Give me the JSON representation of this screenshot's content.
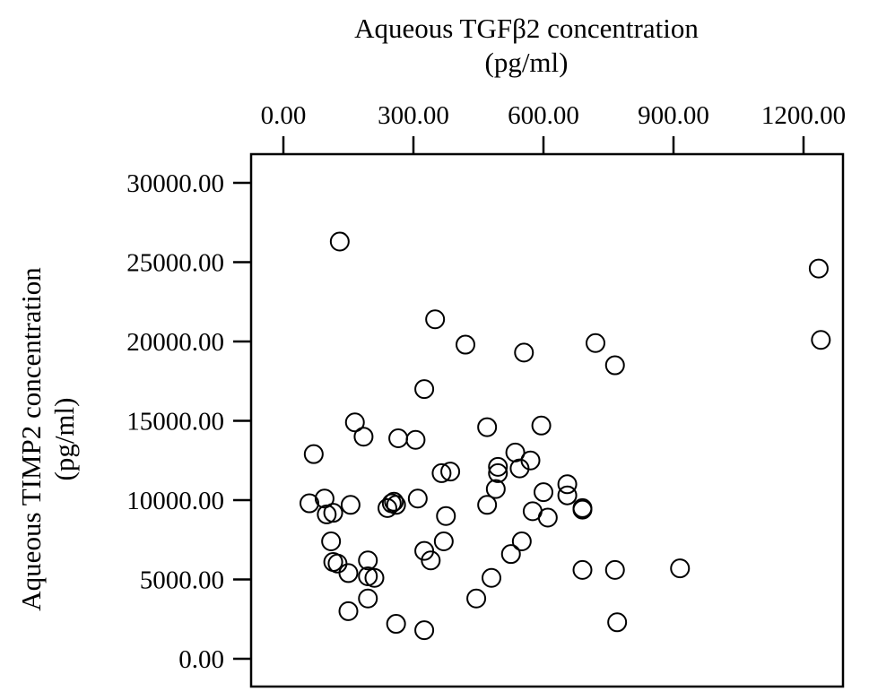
{
  "chart_data": {
    "type": "scatter",
    "title": "",
    "xlabel": [
      "Aqueous TGFβ2  concentration",
      "(pg/ml)"
    ],
    "ylabel": [
      "Aqueous TIMP2 concentration",
      "(pg/ml)"
    ],
    "x_axis_position": "top",
    "xlim": [
      0,
      1300
    ],
    "ylim": [
      0,
      30000
    ],
    "xticks": [
      0,
      300,
      600,
      900,
      1200
    ],
    "xtick_labels": [
      "0.00",
      "300.00",
      "600.00",
      "900.00",
      "1200.00"
    ],
    "yticks": [
      0,
      5000,
      10000,
      15000,
      20000,
      25000,
      30000
    ],
    "ytick_labels": [
      "0.00",
      "5000.00",
      "10000.00",
      "15000.00",
      "20000.00",
      "25000.00",
      "30000.00"
    ],
    "grid": false,
    "legend": false,
    "marker": "open-circle",
    "colors": {
      "marker_stroke": "#000000",
      "axis": "#000000",
      "background": "#ffffff"
    },
    "series": [
      {
        "points": [
          [
            130,
            26300
          ],
          [
            1235,
            24600
          ],
          [
            1240,
            20100
          ],
          [
            350,
            21400
          ],
          [
            420,
            19800
          ],
          [
            555,
            19300
          ],
          [
            720,
            19900
          ],
          [
            765,
            18500
          ],
          [
            325,
            17000
          ],
          [
            165,
            14900
          ],
          [
            185,
            14000
          ],
          [
            265,
            13900
          ],
          [
            305,
            13800
          ],
          [
            70,
            12900
          ],
          [
            470,
            14600
          ],
          [
            595,
            14700
          ],
          [
            535,
            13000
          ],
          [
            570,
            12500
          ],
          [
            545,
            12000
          ],
          [
            495,
            12100
          ],
          [
            495,
            11700
          ],
          [
            385,
            11800
          ],
          [
            365,
            11700
          ],
          [
            490,
            10700
          ],
          [
            600,
            10500
          ],
          [
            655,
            11000
          ],
          [
            655,
            10300
          ],
          [
            60,
            9800
          ],
          [
            95,
            10100
          ],
          [
            100,
            9100
          ],
          [
            115,
            9200
          ],
          [
            155,
            9700
          ],
          [
            250,
            9800
          ],
          [
            255,
            9900
          ],
          [
            260,
            9700
          ],
          [
            240,
            9500
          ],
          [
            310,
            10100
          ],
          [
            375,
            9000
          ],
          [
            470,
            9700
          ],
          [
            575,
            9300
          ],
          [
            610,
            8900
          ],
          [
            690,
            9500
          ],
          [
            690,
            9400
          ],
          [
            110,
            7400
          ],
          [
            370,
            7400
          ],
          [
            550,
            7400
          ],
          [
            325,
            6800
          ],
          [
            525,
            6600
          ],
          [
            340,
            6200
          ],
          [
            115,
            6100
          ],
          [
            125,
            6000
          ],
          [
            195,
            6200
          ],
          [
            195,
            5200
          ],
          [
            210,
            5100
          ],
          [
            150,
            5400
          ],
          [
            480,
            5100
          ],
          [
            690,
            5600
          ],
          [
            765,
            5600
          ],
          [
            915,
            5700
          ],
          [
            195,
            3800
          ],
          [
            445,
            3800
          ],
          [
            150,
            3000
          ],
          [
            260,
            2200
          ],
          [
            325,
            1800
          ],
          [
            770,
            2300
          ]
        ]
      }
    ]
  }
}
